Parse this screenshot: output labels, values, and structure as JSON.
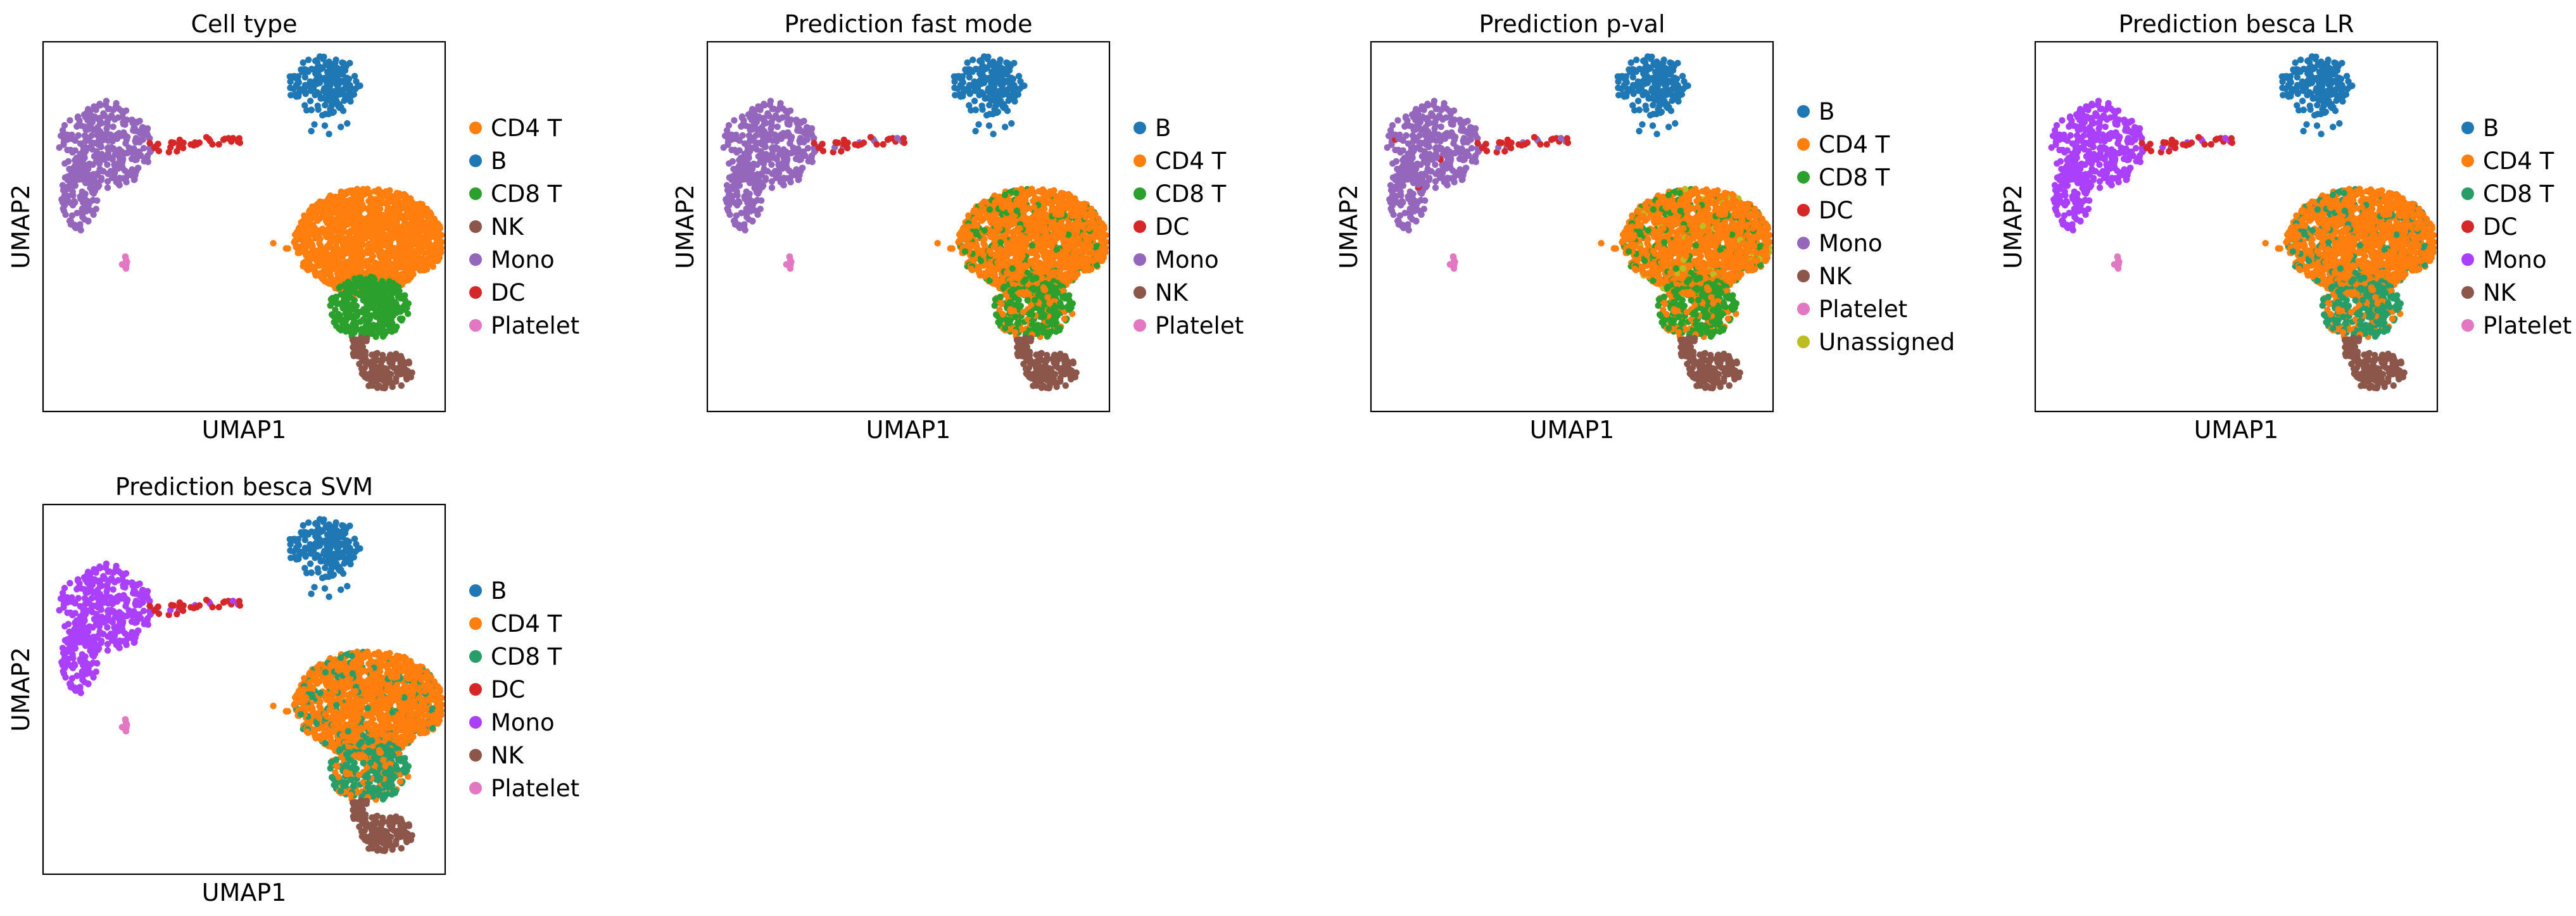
{
  "chart_data": [
    {
      "type": "scatter",
      "title": "Cell type",
      "xlabel": "UMAP1",
      "ylabel": "UMAP2",
      "grid": false,
      "ticks": false,
      "legend_position": "right",
      "legend": [
        {
          "label": "CD4 T",
          "color": "#ff7f0e"
        },
        {
          "label": "B",
          "color": "#1f77b4"
        },
        {
          "label": "CD8 T",
          "color": "#2ca02c"
        },
        {
          "label": "NK",
          "color": "#8c564b"
        },
        {
          "label": "Mono",
          "color": "#9467bd"
        },
        {
          "label": "DC",
          "color": "#d62728"
        },
        {
          "label": "Platelet",
          "color": "#e377c2"
        }
      ],
      "clusters": {
        "B": "B",
        "T": "CD4 T",
        "T_lower": "CD8 T",
        "NK": "NK",
        "Mono": "Mono",
        "strand": "DC",
        "platelet": "Platelet"
      },
      "mixing": null
    },
    {
      "type": "scatter",
      "title": "Prediction fast mode",
      "xlabel": "UMAP1",
      "ylabel": "UMAP2",
      "grid": false,
      "ticks": false,
      "legend_position": "right",
      "legend": [
        {
          "label": "B",
          "color": "#1f77b4"
        },
        {
          "label": "CD4 T",
          "color": "#ff7f0e"
        },
        {
          "label": "CD8 T",
          "color": "#2ca02c"
        },
        {
          "label": "DC",
          "color": "#d62728"
        },
        {
          "label": "Mono",
          "color": "#9467bd"
        },
        {
          "label": "NK",
          "color": "#8c564b"
        },
        {
          "label": "Platelet",
          "color": "#e377c2"
        }
      ],
      "clusters": {
        "B": "B",
        "T": "CD4 T",
        "T_lower": "CD8 T",
        "NK": "NK",
        "Mono": "Mono",
        "strand": "DC",
        "platelet": "Platelet"
      },
      "mixing": "CD8 T"
    },
    {
      "type": "scatter",
      "title": "Prediction p-val",
      "xlabel": "UMAP1",
      "ylabel": "UMAP2",
      "grid": false,
      "ticks": false,
      "legend_position": "right",
      "legend": [
        {
          "label": "B",
          "color": "#1f77b4"
        },
        {
          "label": "CD4 T",
          "color": "#ff7f0e"
        },
        {
          "label": "CD8 T",
          "color": "#2ca02c"
        },
        {
          "label": "DC",
          "color": "#d62728"
        },
        {
          "label": "Mono",
          "color": "#9467bd"
        },
        {
          "label": "NK",
          "color": "#8c564b"
        },
        {
          "label": "Platelet",
          "color": "#e377c2"
        },
        {
          "label": "Unassigned",
          "color": "#bcbd22"
        }
      ],
      "clusters": {
        "B": "B",
        "T": "CD4 T",
        "T_lower": "CD8 T",
        "NK": "NK",
        "Mono": "Mono",
        "strand": "DC",
        "platelet": "Platelet"
      },
      "mixing": "CD8 T"
    },
    {
      "type": "scatter",
      "title": "Prediction besca LR",
      "xlabel": "UMAP1",
      "ylabel": "UMAP2",
      "grid": false,
      "ticks": false,
      "legend_position": "right",
      "legend": [
        {
          "label": "B",
          "color": "#1f77b4"
        },
        {
          "label": "CD4 T",
          "color": "#ff7f0e"
        },
        {
          "label": "CD8 T",
          "color": "#279e68"
        },
        {
          "label": "DC",
          "color": "#d62728"
        },
        {
          "label": "Mono",
          "color": "#aa40fc"
        },
        {
          "label": "NK",
          "color": "#8c564b"
        },
        {
          "label": "Platelet",
          "color": "#e377c2"
        }
      ],
      "clusters": {
        "B": "B",
        "T": "CD4 T",
        "T_lower": "CD8 T",
        "NK": "NK",
        "Mono": "Mono",
        "strand": "DC",
        "platelet": "Platelet"
      },
      "mixing": "CD8 T"
    },
    {
      "type": "scatter",
      "title": "Prediction besca SVM",
      "xlabel": "UMAP1",
      "ylabel": "UMAP2",
      "grid": false,
      "ticks": false,
      "legend_position": "right",
      "legend": [
        {
          "label": "B",
          "color": "#1f77b4"
        },
        {
          "label": "CD4 T",
          "color": "#ff7f0e"
        },
        {
          "label": "CD8 T",
          "color": "#279e68"
        },
        {
          "label": "DC",
          "color": "#d62728"
        },
        {
          "label": "Mono",
          "color": "#aa40fc"
        },
        {
          "label": "NK",
          "color": "#8c564b"
        },
        {
          "label": "Platelet",
          "color": "#e377c2"
        }
      ],
      "clusters": {
        "B": "B",
        "T": "CD4 T",
        "T_lower": "CD8 T",
        "NK": "NK",
        "Mono": "Mono",
        "strand": "DC",
        "platelet": "Platelet"
      },
      "mixing": "CD8 T"
    }
  ]
}
